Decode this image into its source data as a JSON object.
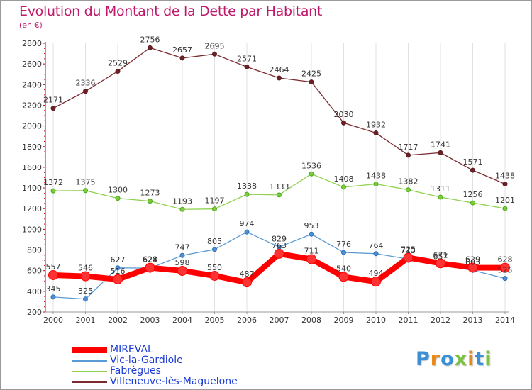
{
  "title": "Evolution du Montant de la Dette par Habitant",
  "subtitle": "(en €)",
  "logo": {
    "text": "Proxiti",
    "letters": [
      {
        "ch": "P",
        "color": "#3a8fd6"
      },
      {
        "ch": "r",
        "color": "#e8891a"
      },
      {
        "ch": "o",
        "color": "#3a8fd6"
      },
      {
        "ch": "x",
        "color": "#7cc242"
      },
      {
        "ch": "i",
        "color": "#e8891a"
      },
      {
        "ch": "t",
        "color": "#3a8fd6"
      },
      {
        "ch": "i",
        "color": "#7cc242"
      }
    ]
  },
  "chart_data": {
    "type": "line",
    "title": "Evolution du Montant de la Dette par Habitant",
    "ylabel": "(en €)",
    "xlabel": "",
    "ylim": [
      200,
      2800
    ],
    "yticks": [
      200,
      400,
      600,
      800,
      1000,
      1200,
      1400,
      1600,
      1800,
      2000,
      2200,
      2400,
      2600,
      2800
    ],
    "grid": "vertical",
    "legend_position": "bottom-left",
    "x": [
      "2000",
      "2001",
      "2002",
      "2003",
      "2004",
      "2005",
      "2006",
      "2007",
      "2008",
      "2009",
      "2010",
      "2011",
      "2012",
      "2013",
      "2014"
    ],
    "series": [
      {
        "name": "MIREVAL",
        "color": "#ff0000",
        "values": [
          557,
          546,
          516,
          628,
          598,
          550,
          487,
          763,
          711,
          540,
          494,
          725,
          671,
          629,
          628
        ]
      },
      {
        "name": "Vic-la-Gardiole",
        "color": "#5b9bd5",
        "values": [
          345,
          325,
          627,
          624,
          747,
          805,
          974,
          829,
          953,
          776,
          764,
          713,
          657,
          603,
          525
        ]
      },
      {
        "name": "Fabrègues",
        "color": "#8fd14f",
        "values": [
          1372,
          1375,
          1300,
          1273,
          1193,
          1197,
          1338,
          1333,
          1536,
          1408,
          1438,
          1382,
          1311,
          1256,
          1201
        ]
      },
      {
        "name": "Villeneuve-lès-Maguelone",
        "color": "#7b2a30",
        "values": [
          2171,
          2336,
          2529,
          2756,
          2657,
          2695,
          2571,
          2464,
          2425,
          2030,
          1932,
          1717,
          1741,
          1571,
          1438
        ]
      }
    ]
  }
}
